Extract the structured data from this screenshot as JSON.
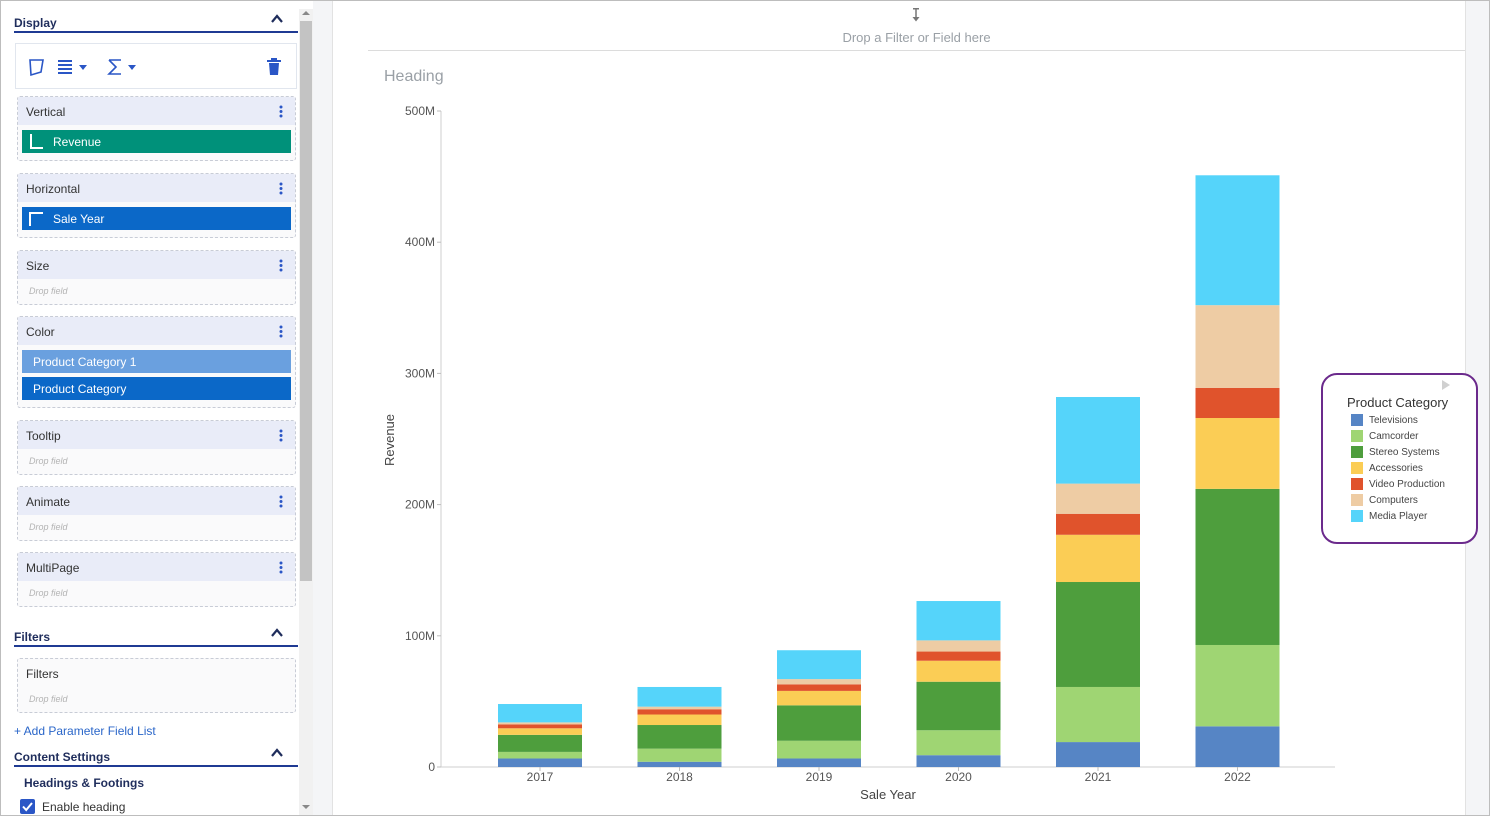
{
  "display": {
    "title": "Display"
  },
  "wells": {
    "vertical": {
      "label": "Vertical",
      "field": "Revenue"
    },
    "horizontal": {
      "label": "Horizontal",
      "field": "Sale Year"
    },
    "size": {
      "label": "Size",
      "hint": "Drop field"
    },
    "color": {
      "label": "Color",
      "field1": "Product Category 1",
      "field2": "Product Category"
    },
    "tooltip": {
      "label": "Tooltip",
      "hint": "Drop field"
    },
    "animate": {
      "label": "Animate",
      "hint": "Drop field"
    },
    "multipage": {
      "label": "MultiPage",
      "hint": "Drop field"
    }
  },
  "filters": {
    "title": "Filters",
    "well_label": "Filters",
    "hint": "Drop field",
    "add_param": "+ Add Parameter Field List"
  },
  "content_settings": {
    "title": "Content Settings",
    "sub_title": "Headings & Footings",
    "enable_heading": "Enable heading"
  },
  "canvas": {
    "filter_drop": "Drop a Filter or Field here",
    "heading": "Heading"
  },
  "colors": {
    "accent": "#1f3a93",
    "vertical_chip": "#00917a",
    "horizontal_chip": "#0b68c8",
    "color_chip1": "#6aa0df",
    "color_chip2": "#0b68c8",
    "legend_border": "#6b2a8c"
  },
  "icons": [
    "pie-shape-icon",
    "stack-icon",
    "sigma-icon",
    "trash-icon",
    "kebab-icon",
    "chevron-up-icon",
    "vertical-axis-icon",
    "horizontal-axis-icon",
    "drop-target-icon"
  ],
  "chart_data": {
    "type": "bar",
    "stacked": true,
    "categories": [
      "2017",
      "2018",
      "2019",
      "2020",
      "2021",
      "2022"
    ],
    "xlabel": "Sale Year",
    "ylabel": "Revenue",
    "ylim": [
      0,
      500000000
    ],
    "yticks": [
      0,
      100000000,
      200000000,
      300000000,
      400000000,
      500000000
    ],
    "ytick_labels": [
      "0",
      "100M",
      "200M",
      "300M",
      "400M",
      "500M"
    ],
    "grid": false,
    "legend": {
      "title": "Product Category",
      "position": "right"
    },
    "series": [
      {
        "name": "Televisions",
        "color": "#5685c5",
        "values": [
          6500000,
          4000000,
          6500000,
          9000000,
          19000000,
          31000000
        ]
      },
      {
        "name": "Camcorder",
        "color": "#9fd573",
        "values": [
          5000000,
          10000000,
          13500000,
          19000000,
          42000000,
          62000000
        ]
      },
      {
        "name": "Stereo Systems",
        "color": "#4e9e3d",
        "values": [
          13000000,
          18000000,
          27000000,
          37000000,
          80000000,
          119000000
        ]
      },
      {
        "name": "Accessories",
        "color": "#fbcd55",
        "values": [
          5000000,
          8000000,
          11000000,
          16000000,
          36000000,
          54000000
        ]
      },
      {
        "name": "Video Production",
        "color": "#e0532c",
        "values": [
          3000000,
          4000000,
          5000000,
          7000000,
          16000000,
          23000000
        ]
      },
      {
        "name": "Computers",
        "color": "#eecca4",
        "values": [
          1500000,
          2000000,
          4000000,
          8500000,
          23000000,
          63000000
        ]
      },
      {
        "name": "Media Player",
        "color": "#55d4fa",
        "values": [
          14000000,
          15000000,
          22000000,
          30000000,
          66000000,
          99000000
        ]
      }
    ]
  }
}
